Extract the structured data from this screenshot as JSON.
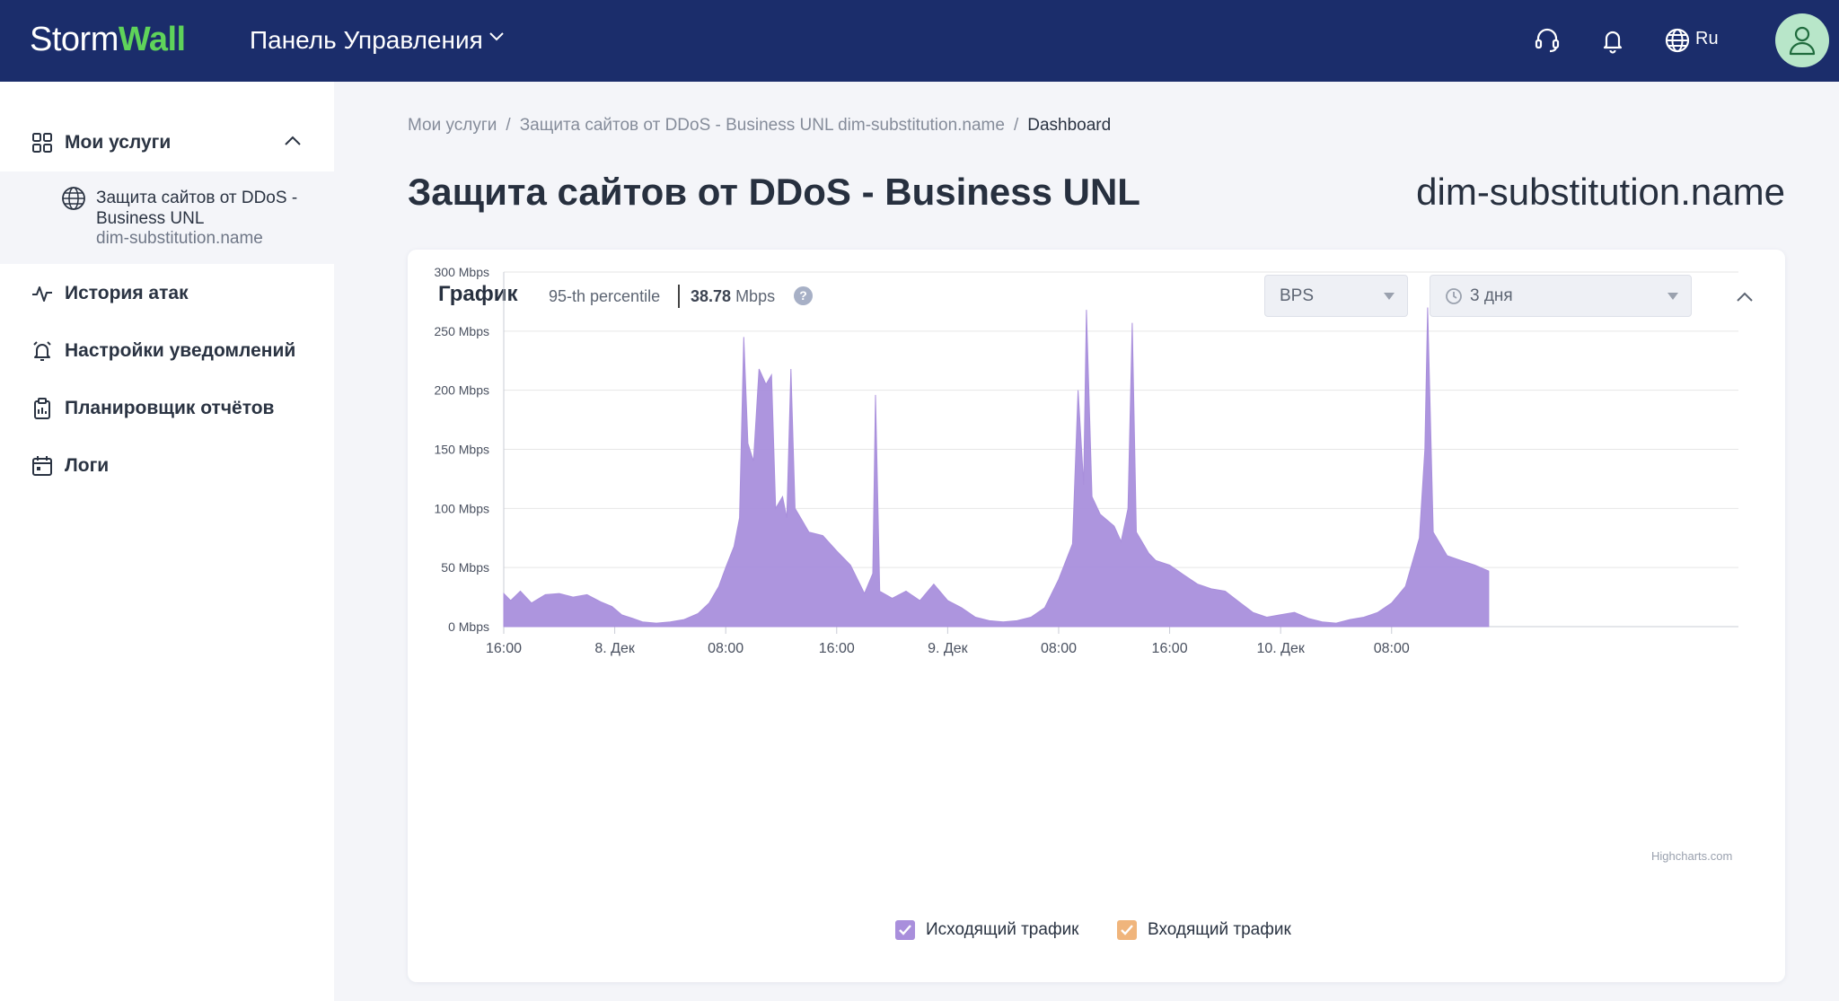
{
  "header": {
    "logo_storm": "Storm",
    "logo_wall": "Wall",
    "panel_title": "Панель Управления",
    "language": "Ru",
    "icons": [
      "headset-icon",
      "bell-icon",
      "globe-icon",
      "user-icon"
    ],
    "colors": {
      "background": "#1b2d6b",
      "logo_accent": "#5fd35a",
      "avatar_bg": "#b8e6c9"
    }
  },
  "sidebar": {
    "services_label": "Мои услуги",
    "service_item": {
      "line1": "Защита сайтов от DDoS - Business UNL",
      "line2": "dim-substitution.name"
    },
    "items": [
      {
        "label": "История атак",
        "icon": "pulse-icon"
      },
      {
        "label": "Настройки уведомлений",
        "icon": "bell-settings-icon"
      },
      {
        "label": "Планировщик отчётов",
        "icon": "clipboard-icon"
      },
      {
        "label": "Логи",
        "icon": "calendar-icon"
      }
    ]
  },
  "breadcrumb": {
    "items": [
      "Мои услуги",
      "Защита сайтов от DDoS - Business UNL dim-substitution.name",
      "Dashboard"
    ],
    "separator": "/"
  },
  "page": {
    "title": "Защита сайтов от DDoS - Business UNL",
    "domain": "dim-substitution.name"
  },
  "card": {
    "title": "График",
    "percentile_label": "95-th percentile",
    "percentile_value": "38.78",
    "percentile_unit": "Mbps",
    "help": "?",
    "metric_select": "BPS",
    "period_select": "3 дня",
    "credits": "Highcharts.com"
  },
  "chart_data": {
    "type": "area",
    "title": "",
    "xlabel": "",
    "ylabel": "",
    "ylim": [
      0,
      300
    ],
    "y_unit": "Mbps",
    "y_ticks": [
      "0 Mbps",
      "50 Mbps",
      "100 Mbps",
      "150 Mbps",
      "200 Mbps",
      "250 Mbps",
      "300 Mbps"
    ],
    "x_range_hours": [
      0,
      89
    ],
    "x_ticks": [
      {
        "h": 0,
        "label": "16:00"
      },
      {
        "h": 8,
        "label": "8. Дек"
      },
      {
        "h": 16,
        "label": "08:00"
      },
      {
        "h": 24,
        "label": "16:00"
      },
      {
        "h": 32,
        "label": "9. Дек"
      },
      {
        "h": 40,
        "label": "08:00"
      },
      {
        "h": 48,
        "label": "16:00"
      },
      {
        "h": 56,
        "label": "10. Дек"
      },
      {
        "h": 64,
        "label": "08:00"
      }
    ],
    "grid": true,
    "legend_position": "bottom-center",
    "series": [
      {
        "name": "Исходящий трафик",
        "color": "#a98fdc",
        "visible": true,
        "points": [
          [
            0,
            28
          ],
          [
            0.5,
            22
          ],
          [
            1.2,
            30
          ],
          [
            2,
            20
          ],
          [
            3,
            27
          ],
          [
            4,
            28
          ],
          [
            5,
            25
          ],
          [
            6,
            27
          ],
          [
            7,
            21
          ],
          [
            7.8,
            17
          ],
          [
            8.5,
            10
          ],
          [
            9.3,
            7
          ],
          [
            10,
            4
          ],
          [
            11,
            3
          ],
          [
            12,
            4
          ],
          [
            13,
            6
          ],
          [
            14,
            11
          ],
          [
            14.8,
            20
          ],
          [
            15.5,
            34
          ],
          [
            16,
            50
          ],
          [
            16.6,
            68
          ],
          [
            17,
            92
          ],
          [
            17.3,
            245
          ],
          [
            17.6,
            155
          ],
          [
            18,
            140
          ],
          [
            18.4,
            218
          ],
          [
            18.9,
            205
          ],
          [
            19.3,
            213
          ],
          [
            19.6,
            100
          ],
          [
            20.1,
            110
          ],
          [
            20.4,
            92
          ],
          [
            20.7,
            218
          ],
          [
            21,
            100
          ],
          [
            21.5,
            90
          ],
          [
            22,
            80
          ],
          [
            23,
            77
          ],
          [
            24,
            64
          ],
          [
            25,
            52
          ],
          [
            26,
            28
          ],
          [
            26.6,
            45
          ],
          [
            26.8,
            196
          ],
          [
            27.1,
            30
          ],
          [
            28,
            24
          ],
          [
            29,
            30
          ],
          [
            30,
            22
          ],
          [
            31,
            36
          ],
          [
            32,
            22
          ],
          [
            33,
            16
          ],
          [
            34,
            8
          ],
          [
            35,
            5
          ],
          [
            36,
            4
          ],
          [
            37,
            5
          ],
          [
            38,
            8
          ],
          [
            39,
            16
          ],
          [
            40,
            40
          ],
          [
            41,
            70
          ],
          [
            41.4,
            200
          ],
          [
            41.8,
            120
          ],
          [
            42,
            268
          ],
          [
            42.4,
            110
          ],
          [
            43,
            95
          ],
          [
            44,
            85
          ],
          [
            44.5,
            72
          ],
          [
            45,
            100
          ],
          [
            45.3,
            257
          ],
          [
            45.6,
            80
          ],
          [
            46.5,
            62
          ],
          [
            47,
            56
          ],
          [
            48,
            52
          ],
          [
            49,
            44
          ],
          [
            50,
            36
          ],
          [
            51,
            32
          ],
          [
            52,
            30
          ],
          [
            53,
            21
          ],
          [
            54,
            12
          ],
          [
            55,
            8
          ],
          [
            56,
            10
          ],
          [
            57,
            12
          ],
          [
            58,
            7
          ],
          [
            59,
            4
          ],
          [
            60,
            3
          ],
          [
            61,
            6
          ],
          [
            62,
            8
          ],
          [
            63,
            12
          ],
          [
            64,
            20
          ],
          [
            65,
            34
          ],
          [
            66,
            75
          ],
          [
            66.4,
            150
          ],
          [
            66.6,
            270
          ],
          [
            67,
            80
          ],
          [
            67.5,
            70
          ],
          [
            68,
            60
          ],
          [
            69,
            56
          ],
          [
            70,
            52
          ],
          [
            71,
            47
          ]
        ]
      },
      {
        "name": "Входящий трафик",
        "color": "#f0b57c",
        "visible": true,
        "points": []
      }
    ]
  }
}
